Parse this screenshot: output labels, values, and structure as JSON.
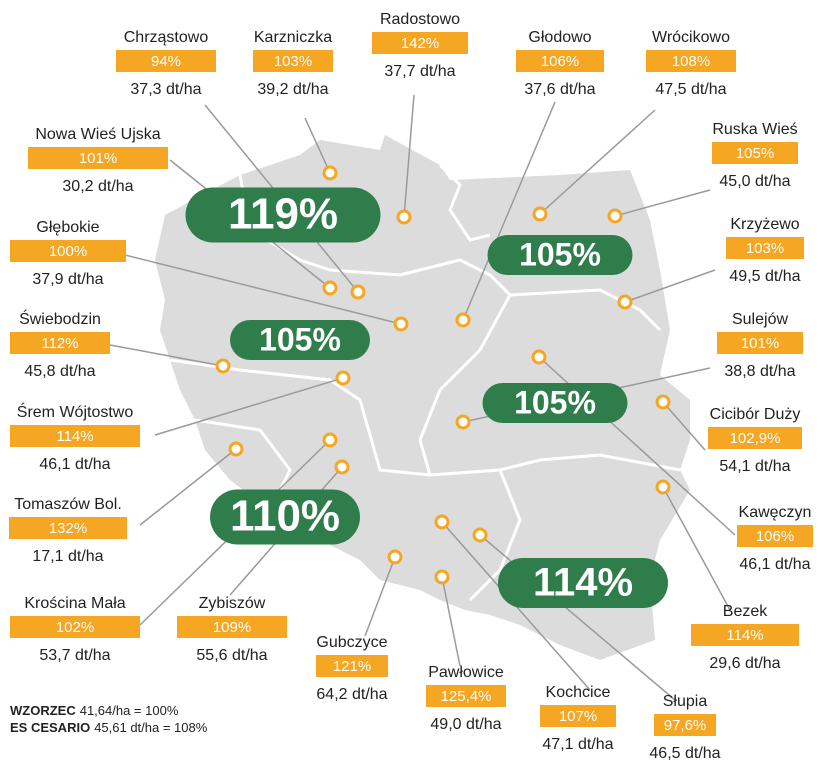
{
  "locations": [
    {
      "name": "Chrząstowo",
      "percent": "94%",
      "yield": "37,3 dt/ha"
    },
    {
      "name": "Karzniczka",
      "percent": "103%",
      "yield": "39,2 dt/ha"
    },
    {
      "name": "Radostowo",
      "percent": "142%",
      "yield": "37,7 dt/ha"
    },
    {
      "name": "Głodowo",
      "percent": "106%",
      "yield": "37,6 dt/ha"
    },
    {
      "name": "Wrócikowo",
      "percent": "108%",
      "yield": "47,5 dt/ha"
    },
    {
      "name": "Ruska Wieś",
      "percent": "105%",
      "yield": "45,0 dt/ha"
    },
    {
      "name": "Krzyżewo",
      "percent": "103%",
      "yield": "49,5 dt/ha"
    },
    {
      "name": "Sulejów",
      "percent": "101%",
      "yield": "38,8 dt/ha"
    },
    {
      "name": "Cicibór Duży",
      "percent": "102,9%",
      "yield": "54,1 dt/ha"
    },
    {
      "name": "Kawęczyn",
      "percent": "106%",
      "yield": "46,1 dt/ha"
    },
    {
      "name": "Bezek",
      "percent": "114%",
      "yield": "29,6 dt/ha"
    },
    {
      "name": "Słupia",
      "percent": "97,6%",
      "yield": "46,5 dt/ha"
    },
    {
      "name": "Kochcice",
      "percent": "107%",
      "yield": "47,1 dt/ha"
    },
    {
      "name": "Pawłowice",
      "percent": "125,4%",
      "yield": "49,0 dt/ha"
    },
    {
      "name": "Gubczyce",
      "percent": "121%",
      "yield": "64,2 dt/ha"
    },
    {
      "name": "Zybiszów",
      "percent": "109%",
      "yield": "55,6 dt/ha"
    },
    {
      "name": "Krościna Mała",
      "percent": "102%",
      "yield": "53,7 dt/ha"
    },
    {
      "name": "Tomaszów Bol.",
      "percent": "132%",
      "yield": "17,1 dt/ha"
    },
    {
      "name": "Śrem Wójtostwo",
      "percent": "114%",
      "yield": "46,1 dt/ha"
    },
    {
      "name": "Świebodzin",
      "percent": "112%",
      "yield": "45,8 dt/ha"
    },
    {
      "name": "Głębokie",
      "percent": "100%",
      "yield": "37,9 dt/ha"
    },
    {
      "name": "Nowa Wieś Ujska",
      "percent": "101%",
      "yield": "30,2 dt/ha"
    }
  ],
  "regions": [
    "119%",
    "105%",
    "105%",
    "105%",
    "110%",
    "114%"
  ],
  "footer": [
    {
      "label": "WZORZEC",
      "text": "41,64/ha = 100%"
    },
    {
      "label": "ES CESARIO",
      "text": "45,61 dt/ha = 108%"
    }
  ]
}
